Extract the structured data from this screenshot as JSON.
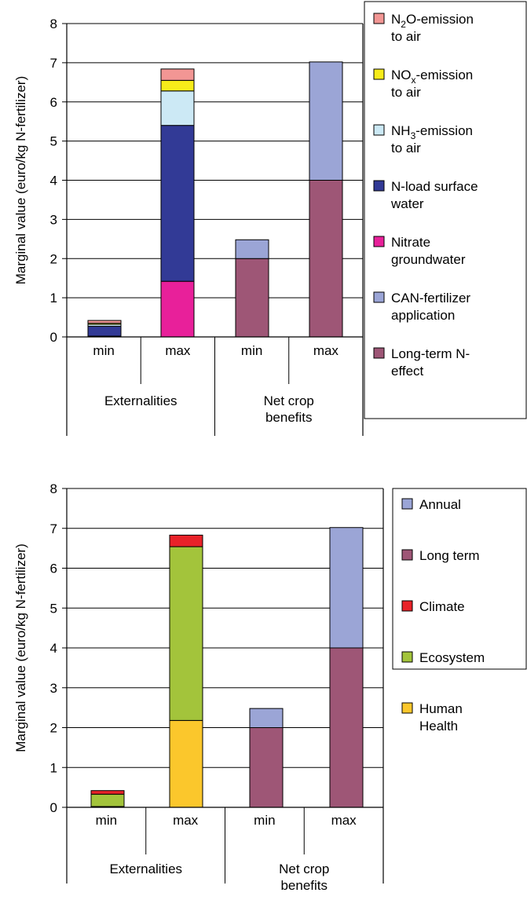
{
  "chart_data": [
    {
      "type": "bar",
      "stacked": true,
      "ylabel": "Marginal value (euro/kg N-fertilizer)",
      "ylim": [
        0,
        8
      ],
      "yticks": [
        "0",
        "1",
        "2",
        "3",
        "4",
        "5",
        "6",
        "7",
        "8"
      ],
      "grid": true,
      "legend_position": "right",
      "categories": [
        "min",
        "max",
        "min",
        "max"
      ],
      "groups": [
        {
          "label": "Externalities",
          "lines": [
            "Externalities"
          ]
        },
        {
          "label": "Net crop benefits",
          "lines": [
            "Net crop",
            "benefits"
          ]
        }
      ],
      "series": [
        {
          "name": "Long-term N-effect",
          "legend_lines": [
            "Long-term N-",
            "effect"
          ],
          "color": "#9e5676",
          "values": [
            0,
            0,
            2.0,
            4.0
          ]
        },
        {
          "name": "CAN-fertilizer application",
          "legend_lines": [
            "CAN-fertilizer",
            "application"
          ],
          "color": "#9ba5d6",
          "values": [
            0,
            0,
            0.48,
            3.02
          ]
        },
        {
          "name": "Nitrate groundwater",
          "legend_lines": [
            "Nitrate",
            "groundwater"
          ],
          "color": "#e8209a",
          "values": [
            0.02,
            1.42,
            0,
            0
          ]
        },
        {
          "name": "N-load surface water",
          "legend_lines": [
            "N-load surface",
            "water"
          ],
          "color": "#323a96",
          "values": [
            0.25,
            3.98,
            0,
            0
          ]
        },
        {
          "name": "NH3-emission to air",
          "legend_lines": [
            "NH|3|-emission",
            "to air"
          ],
          "color": "#cce9f5",
          "values": [
            0.05,
            0.88,
            0,
            0
          ]
        },
        {
          "name": "NOx-emission to air",
          "legend_lines": [
            "NO|x|-emission",
            "to air"
          ],
          "color": "#f7ec1a",
          "values": [
            0.03,
            0.27,
            0,
            0
          ]
        },
        {
          "name": "N2O-emission to air",
          "legend_lines": [
            "N|2|O-emission",
            "to air"
          ],
          "color": "#f29694",
          "values": [
            0.07,
            0.29,
            0,
            0
          ]
        }
      ]
    },
    {
      "type": "bar",
      "stacked": true,
      "ylabel": "Marginal value (euro/kg N-fertilizer)",
      "ylim": [
        0,
        8
      ],
      "yticks": [
        "0",
        "1",
        "2",
        "3",
        "4",
        "5",
        "6",
        "7",
        "8"
      ],
      "grid": true,
      "legend_position": "right",
      "categories": [
        "min",
        "max",
        "min",
        "max"
      ],
      "groups": [
        {
          "label": "Externalities",
          "lines": [
            "Externalities"
          ]
        },
        {
          "label": "Net crop benefits",
          "lines": [
            "Net crop",
            "benefits"
          ]
        }
      ],
      "series": [
        {
          "name": "Human Health",
          "legend_lines": [
            "Human",
            "Health"
          ],
          "color": "#fbc72c",
          "values": [
            0.02,
            2.18,
            0,
            0
          ]
        },
        {
          "name": "Ecosystem",
          "legend_lines": [
            "Ecosystem"
          ],
          "color": "#a3c43b",
          "values": [
            0.31,
            4.36,
            0,
            0
          ]
        },
        {
          "name": "Climate",
          "legend_lines": [
            "Climate"
          ],
          "color": "#e82229",
          "values": [
            0.09,
            0.29,
            0,
            0
          ]
        },
        {
          "name": "Long term",
          "legend_lines": [
            "Long term"
          ],
          "color": "#9e5676",
          "values": [
            0,
            0,
            2.0,
            4.0
          ]
        },
        {
          "name": "Annual",
          "legend_lines": [
            "Annual"
          ],
          "color": "#9ba5d6",
          "values": [
            0,
            0,
            0.48,
            3.02
          ]
        }
      ]
    }
  ]
}
